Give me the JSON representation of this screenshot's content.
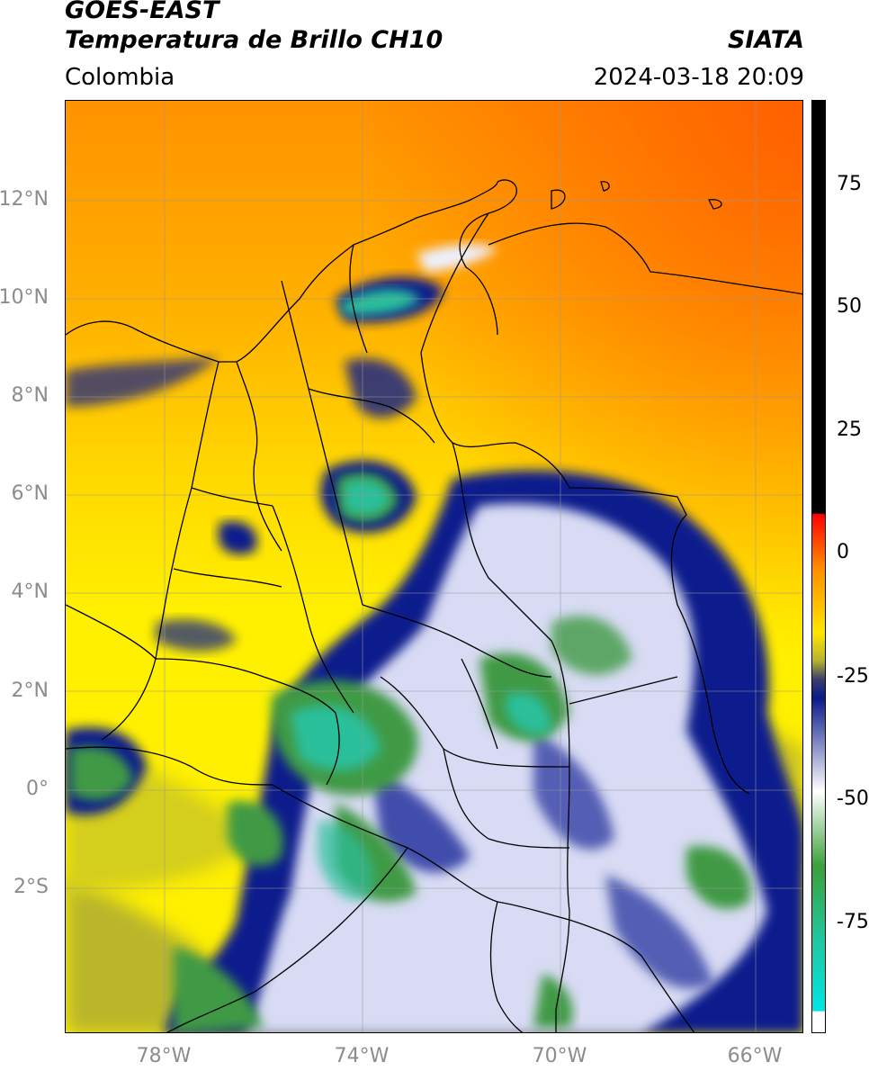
{
  "header": {
    "satellite": "GOES-EAST",
    "product": "Temperatura de Brillo CH10",
    "brand": "SIATA",
    "region": "Colombia",
    "datetime": "2024-03-18 20:09"
  },
  "axes": {
    "lat_ticks": [
      "12°N",
      "10°N",
      "8°N",
      "6°N",
      "4°N",
      "2°N",
      "0°",
      "2°S"
    ],
    "lon_ticks": [
      "78°W",
      "74°W",
      "70°W",
      "66°W"
    ],
    "grid": true
  },
  "colorbar": {
    "ticks": [
      "75",
      "50",
      "25",
      "0",
      "-25",
      "-50",
      "-75"
    ],
    "stops": [
      {
        "color": "#000000"
      },
      {
        "color": "#000000"
      },
      {
        "color": "#ff0000"
      },
      {
        "color": "#ff8c00"
      },
      {
        "color": "#ffe600"
      },
      {
        "color": "#b5b32e"
      },
      {
        "color": "#3a3d6b"
      },
      {
        "color": "#0a1a8a"
      },
      {
        "color": "#ffffff"
      },
      {
        "color": "#3aa03a"
      },
      {
        "color": "#20c8a0"
      },
      {
        "color": "#00e5e5"
      },
      {
        "color": "#ffffff"
      }
    ]
  },
  "palette": {
    "warm_top": "#ff8c00",
    "warm_mid": "#ffd000",
    "yellow": "#ffee00",
    "olive": "#b9b62c",
    "navy": "#0b1b8c",
    "white": "#f2f4ff",
    "green": "#3f9a45",
    "teal": "#2bbf9b"
  }
}
